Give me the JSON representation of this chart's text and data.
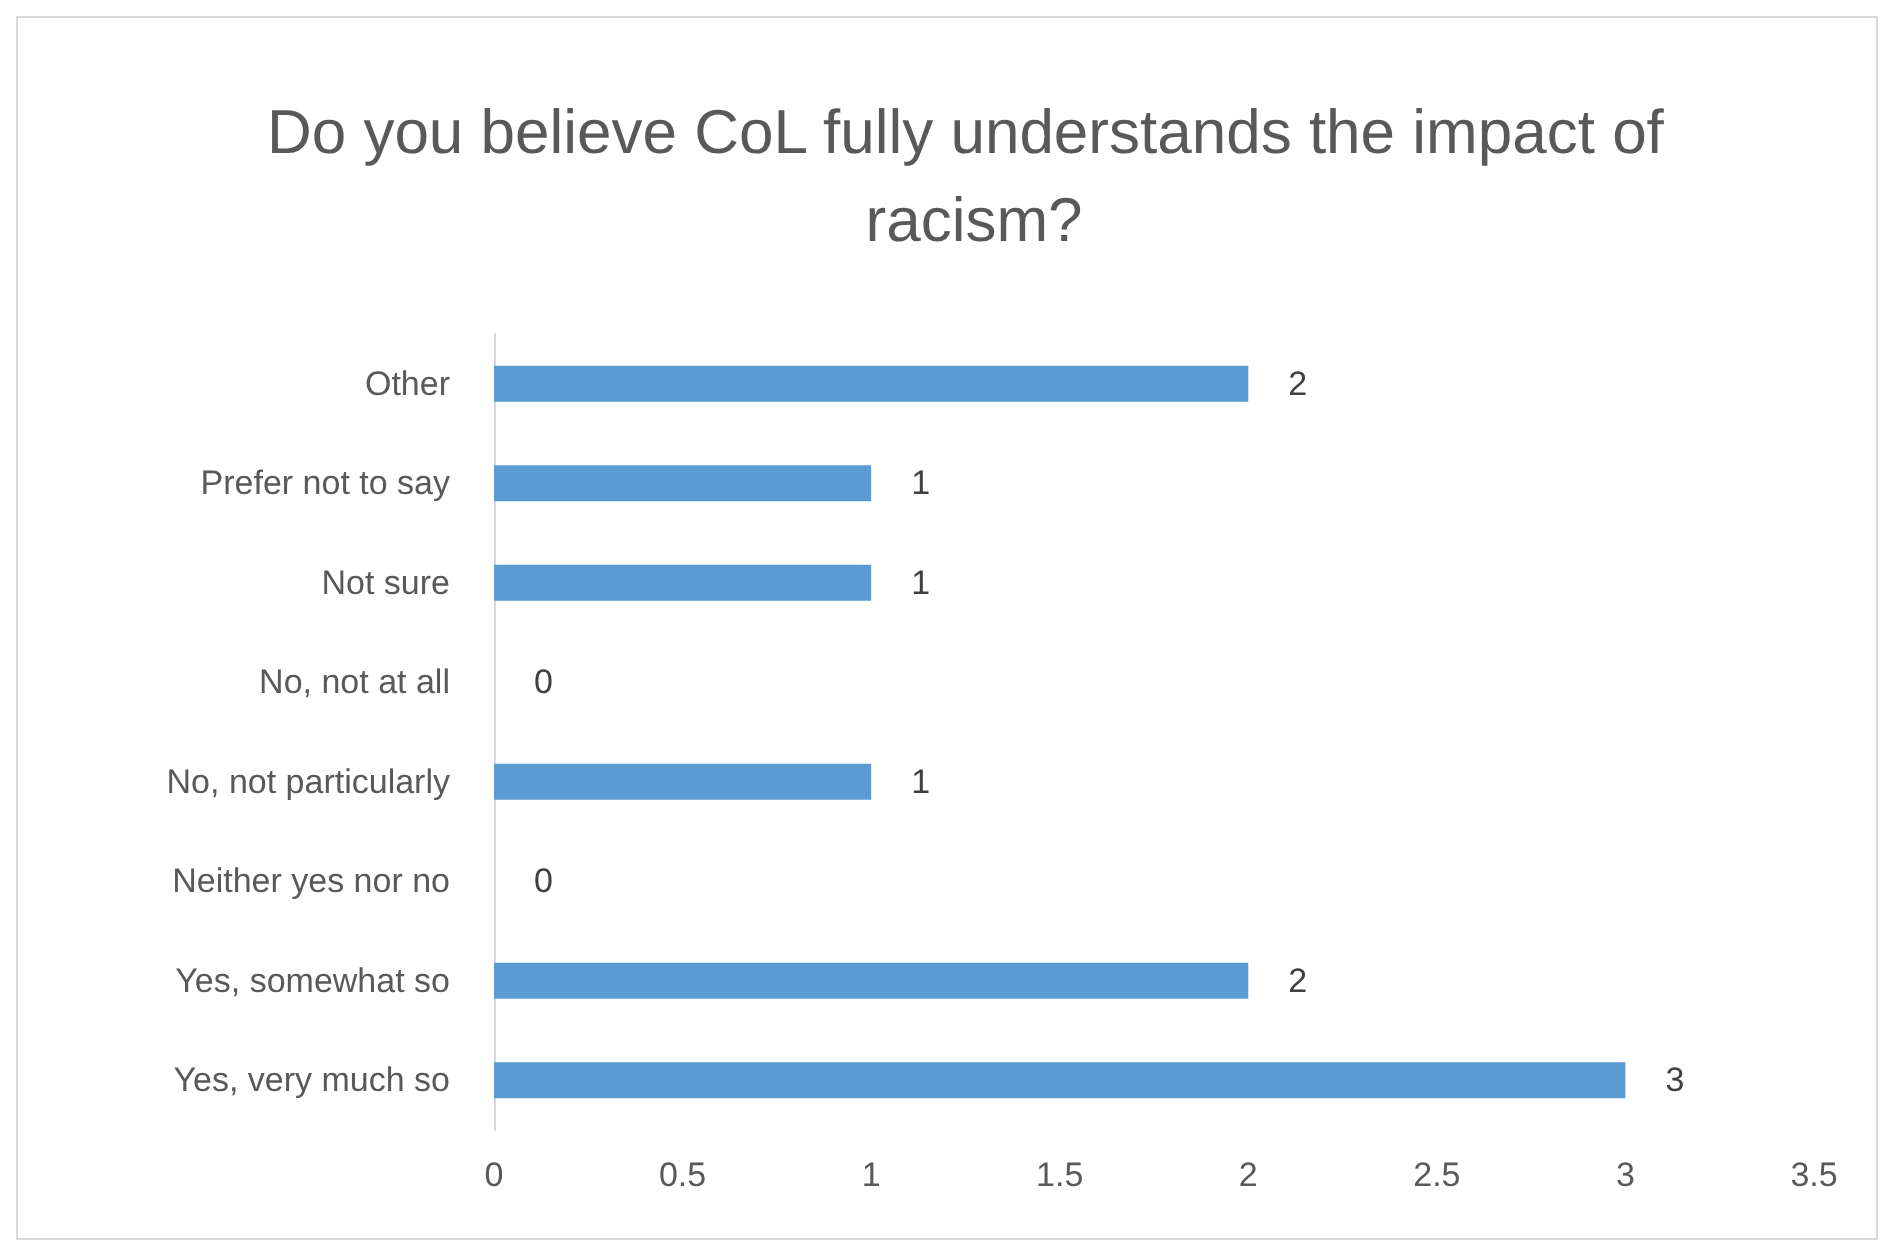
{
  "chart_data": {
    "type": "bar",
    "orientation": "horizontal",
    "title": "Do you believe CoL fully understands the impact of racism?",
    "categories": [
      "Other",
      "Prefer not to say",
      "Not sure",
      "No, not at all",
      "No, not particularly",
      "Neither yes nor no",
      "Yes, somewhat so",
      "Yes, very much so"
    ],
    "values": [
      2,
      1,
      1,
      0,
      1,
      0,
      2,
      3
    ],
    "color": "#5b9bd5",
    "xlim": [
      0,
      3.5
    ],
    "xticks": [
      0,
      0.5,
      1,
      1.5,
      2,
      2.5,
      3,
      3.5
    ],
    "data_labels": true,
    "grid": false
  }
}
